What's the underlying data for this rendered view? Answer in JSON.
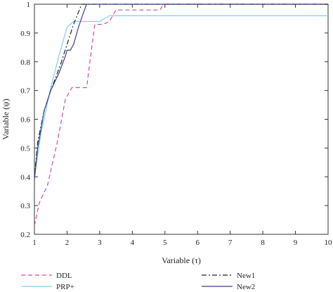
{
  "chart_data": {
    "type": "line",
    "xlabel": "Variable (τ)",
    "ylabel": "Variable (ψ)",
    "xlim": [
      1,
      10
    ],
    "ylim": [
      0.2,
      1
    ],
    "x_ticks": [
      1,
      2,
      3,
      4,
      5,
      6,
      7,
      8,
      9,
      10
    ],
    "y_ticks": [
      0.2,
      0.3,
      0.4,
      0.5,
      0.6,
      0.7,
      0.8,
      0.9,
      1
    ],
    "y_tick_labels": [
      "0.2",
      "0.3",
      "0.4",
      "0.5",
      "0.6",
      "0.7",
      "0.8",
      "0.9",
      "1"
    ],
    "grid": false,
    "legend_position": "bottom",
    "series": [
      {
        "name": "DDL",
        "color": "#d9479f",
        "dash": "dashed",
        "x": [
          1.0,
          1.15,
          1.4,
          1.7,
          1.95,
          2.15,
          2.4,
          2.55,
          2.6,
          2.7,
          2.85,
          3.1,
          3.3,
          3.5,
          4.0,
          4.5,
          4.85,
          4.95,
          10.0
        ],
        "y": [
          0.23,
          0.31,
          0.37,
          0.52,
          0.67,
          0.71,
          0.71,
          0.71,
          0.71,
          0.8,
          0.93,
          0.93,
          0.94,
          0.98,
          0.98,
          0.98,
          0.98,
          1.0,
          1.0
        ]
      },
      {
        "name": "PRP+",
        "color": "#7fd0ec",
        "dash": "solid",
        "x": [
          1.0,
          1.2,
          1.5,
          1.75,
          2.0,
          2.2,
          2.5,
          3.0,
          3.3,
          10.0
        ],
        "y": [
          0.4,
          0.55,
          0.71,
          0.82,
          0.92,
          0.94,
          0.94,
          0.94,
          0.96,
          0.96
        ]
      },
      {
        "name": "New1",
        "color": "#222222",
        "dash": "dashdot",
        "x": [
          1.0,
          1.1,
          1.3,
          1.5,
          1.8,
          2.0,
          2.2,
          2.45,
          10.0
        ],
        "y": [
          0.4,
          0.52,
          0.63,
          0.7,
          0.79,
          0.86,
          0.93,
          1.0,
          1.0
        ]
      },
      {
        "name": "New2",
        "color": "#3b3f8f",
        "dash": "solid",
        "x": [
          1.0,
          1.1,
          1.3,
          1.5,
          1.75,
          1.95,
          2.0,
          2.1,
          2.2,
          2.35,
          2.5,
          2.6,
          10.0
        ],
        "y": [
          0.39,
          0.5,
          0.63,
          0.7,
          0.76,
          0.82,
          0.84,
          0.84,
          0.86,
          0.92,
          0.97,
          1.0,
          1.0
        ]
      }
    ]
  }
}
